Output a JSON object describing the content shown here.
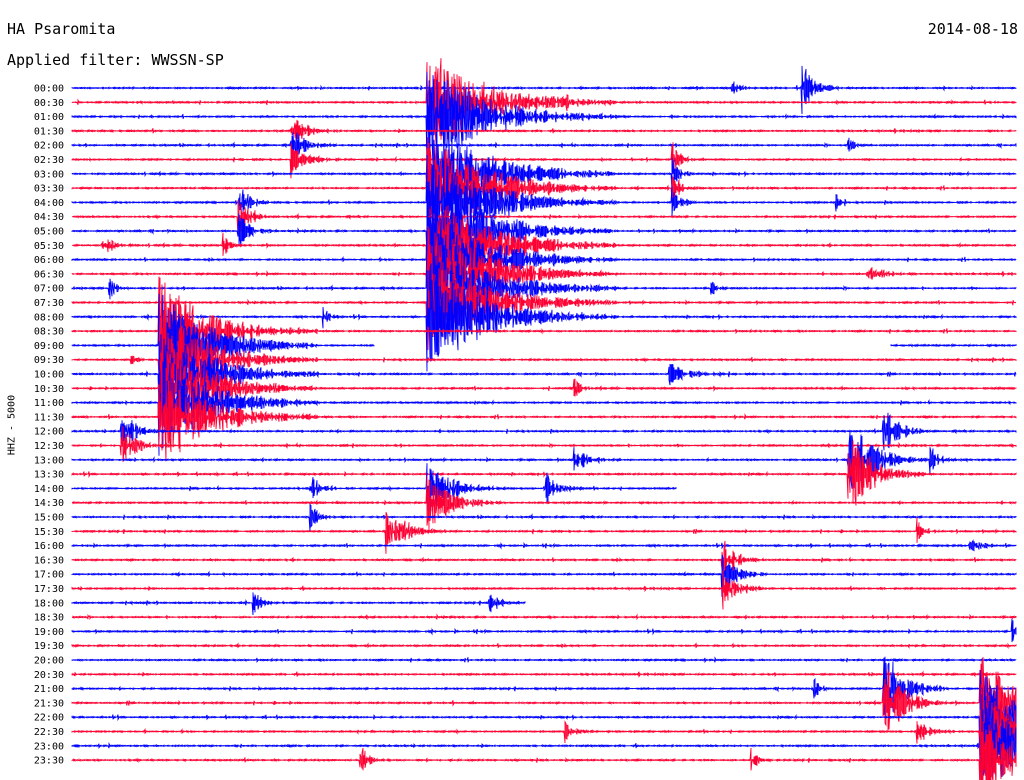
{
  "header": {
    "station": "HA Psaromita",
    "filter": "Applied filter: WWSSN-SP",
    "date": "2014-08-18"
  },
  "chart_data": {
    "type": "line",
    "title": "HA Psaromita",
    "subtitle": "Applied filter: WWSSN-SP",
    "date": "2014-08-18",
    "ylabel": "HHZ - 5000",
    "colors": {
      "even_trace": "#0000ff",
      "odd_trace": "#ff0033"
    },
    "row_labels": [
      "00:00",
      "00:30",
      "01:00",
      "01:30",
      "02:00",
      "02:30",
      "03:00",
      "03:30",
      "04:00",
      "04:30",
      "05:00",
      "05:30",
      "06:00",
      "06:30",
      "07:00",
      "07:30",
      "08:00",
      "08:30",
      "09:00",
      "09:30",
      "10:00",
      "10:30",
      "11:00",
      "11:30",
      "12:00",
      "12:30",
      "13:00",
      "13:30",
      "14:00",
      "14:30",
      "15:00",
      "15:30",
      "16:00",
      "16:30",
      "17:00",
      "17:30",
      "18:00",
      "18:30",
      "19:00",
      "19:30",
      "20:00",
      "20:30",
      "21:00",
      "21:30",
      "22:00",
      "22:30",
      "23:00",
      "23:30"
    ],
    "minutes_per_row": 30,
    "gaps": [
      {
        "row": 18,
        "from_min": 9.6,
        "to_min": 26.0
      },
      {
        "row": 28,
        "from_min": 19.2,
        "to_min": 30.0
      },
      {
        "row": 36,
        "from_min": 14.4,
        "to_min": 30.0
      }
    ],
    "events": [
      {
        "row": 0,
        "min": 23.2,
        "amp": 2.2,
        "dur": 1.2
      },
      {
        "row": 0,
        "min": 21.0,
        "amp": 0.7,
        "dur": 0.6
      },
      {
        "row": 1,
        "min": 11.3,
        "amp": 4.0,
        "dur": 6.0
      },
      {
        "row": 1,
        "min": 15.7,
        "amp": 0.8,
        "dur": 0.7
      },
      {
        "row": 2,
        "min": 11.3,
        "amp": 4.0,
        "dur": 6.0
      },
      {
        "row": 3,
        "min": 7.0,
        "amp": 1.2,
        "dur": 1.5
      },
      {
        "row": 4,
        "min": 7.0,
        "amp": 1.2,
        "dur": 1.5
      },
      {
        "row": 4,
        "min": 24.7,
        "amp": 0.8,
        "dur": 0.5
      },
      {
        "row": 5,
        "min": 7.0,
        "amp": 1.2,
        "dur": 1.5
      },
      {
        "row": 5,
        "min": 19.1,
        "amp": 1.2,
        "dur": 0.8
      },
      {
        "row": 6,
        "min": 11.3,
        "amp": 4.0,
        "dur": 6.0
      },
      {
        "row": 6,
        "min": 19.1,
        "amp": 1.2,
        "dur": 0.8
      },
      {
        "row": 7,
        "min": 11.3,
        "amp": 4.0,
        "dur": 6.0
      },
      {
        "row": 7,
        "min": 19.1,
        "amp": 1.2,
        "dur": 0.8
      },
      {
        "row": 8,
        "min": 11.3,
        "amp": 4.0,
        "dur": 6.0
      },
      {
        "row": 8,
        "min": 5.3,
        "amp": 1.3,
        "dur": 1.2
      },
      {
        "row": 8,
        "min": 19.1,
        "amp": 1.2,
        "dur": 0.8
      },
      {
        "row": 8,
        "min": 24.3,
        "amp": 0.7,
        "dur": 0.5
      },
      {
        "row": 9,
        "min": 5.3,
        "amp": 1.3,
        "dur": 1.2
      },
      {
        "row": 10,
        "min": 11.3,
        "amp": 4.0,
        "dur": 6.0
      },
      {
        "row": 10,
        "min": 5.3,
        "amp": 1.3,
        "dur": 1.2
      },
      {
        "row": 11,
        "min": 11.3,
        "amp": 4.0,
        "dur": 6.0
      },
      {
        "row": 11,
        "min": 1.0,
        "amp": 0.9,
        "dur": 1.0
      },
      {
        "row": 11,
        "min": 4.8,
        "amp": 1.0,
        "dur": 0.6
      },
      {
        "row": 12,
        "min": 11.3,
        "amp": 4.0,
        "dur": 6.0
      },
      {
        "row": 13,
        "min": 11.3,
        "amp": 4.0,
        "dur": 6.0
      },
      {
        "row": 13,
        "min": 13.3,
        "amp": 0.8,
        "dur": 0.8
      },
      {
        "row": 13,
        "min": 25.3,
        "amp": 0.8,
        "dur": 1.5
      },
      {
        "row": 14,
        "min": 11.3,
        "amp": 4.0,
        "dur": 6.0
      },
      {
        "row": 14,
        "min": 1.2,
        "amp": 1.0,
        "dur": 0.6
      },
      {
        "row": 14,
        "min": 20.3,
        "amp": 0.8,
        "dur": 0.5
      },
      {
        "row": 15,
        "min": 11.3,
        "amp": 4.0,
        "dur": 6.0
      },
      {
        "row": 16,
        "min": 11.3,
        "amp": 4.0,
        "dur": 6.0
      },
      {
        "row": 16,
        "min": 8.0,
        "amp": 0.8,
        "dur": 0.6
      },
      {
        "row": 17,
        "min": 2.8,
        "amp": 4.0,
        "dur": 5.0
      },
      {
        "row": 18,
        "min": 2.8,
        "amp": 4.0,
        "dur": 5.0
      },
      {
        "row": 19,
        "min": 2.8,
        "amp": 4.0,
        "dur": 5.0
      },
      {
        "row": 19,
        "min": 1.9,
        "amp": 0.8,
        "dur": 0.5
      },
      {
        "row": 20,
        "min": 2.8,
        "amp": 4.0,
        "dur": 5.0
      },
      {
        "row": 20,
        "min": 19.0,
        "amp": 0.8,
        "dur": 2.0
      },
      {
        "row": 21,
        "min": 2.8,
        "amp": 4.0,
        "dur": 5.0
      },
      {
        "row": 21,
        "min": 16.0,
        "amp": 0.8,
        "dur": 0.6
      },
      {
        "row": 22,
        "min": 2.8,
        "amp": 4.0,
        "dur": 5.0
      },
      {
        "row": 23,
        "min": 2.8,
        "amp": 4.0,
        "dur": 5.0
      },
      {
        "row": 24,
        "min": 1.6,
        "amp": 1.6,
        "dur": 1.5
      },
      {
        "row": 24,
        "min": 25.8,
        "amp": 2.0,
        "dur": 1.5
      },
      {
        "row": 25,
        "min": 1.6,
        "amp": 1.6,
        "dur": 1.5
      },
      {
        "row": 26,
        "min": 24.7,
        "amp": 3.0,
        "dur": 2.5
      },
      {
        "row": 26,
        "min": 27.3,
        "amp": 1.2,
        "dur": 1.0
      },
      {
        "row": 26,
        "min": 16.0,
        "amp": 0.9,
        "dur": 1.5
      },
      {
        "row": 27,
        "min": 24.7,
        "amp": 3.0,
        "dur": 2.5
      },
      {
        "row": 28,
        "min": 11.3,
        "amp": 2.0,
        "dur": 2.5
      },
      {
        "row": 28,
        "min": 7.6,
        "amp": 1.0,
        "dur": 1.0
      },
      {
        "row": 28,
        "min": 15.1,
        "amp": 1.2,
        "dur": 1.2
      },
      {
        "row": 29,
        "min": 11.3,
        "amp": 2.0,
        "dur": 2.5
      },
      {
        "row": 30,
        "min": 7.6,
        "amp": 1.0,
        "dur": 0.8
      },
      {
        "row": 31,
        "min": 10.0,
        "amp": 2.0,
        "dur": 2.0
      },
      {
        "row": 31,
        "min": 26.9,
        "amp": 0.8,
        "dur": 0.8
      },
      {
        "row": 32,
        "min": 28.5,
        "amp": 0.8,
        "dur": 1.0
      },
      {
        "row": 33,
        "min": 20.7,
        "amp": 1.6,
        "dur": 1.5
      },
      {
        "row": 34,
        "min": 20.7,
        "amp": 1.6,
        "dur": 1.5
      },
      {
        "row": 35,
        "min": 20.7,
        "amp": 1.6,
        "dur": 1.5
      },
      {
        "row": 36,
        "min": 5.8,
        "amp": 0.9,
        "dur": 1.0
      },
      {
        "row": 36,
        "min": 13.3,
        "amp": 0.8,
        "dur": 1.0
      },
      {
        "row": 38,
        "min": 29.9,
        "amp": 1.0,
        "dur": 0.6
      },
      {
        "row": 42,
        "min": 23.6,
        "amp": 0.8,
        "dur": 0.8
      },
      {
        "row": 42,
        "min": 25.8,
        "amp": 3.0,
        "dur": 2.0
      },
      {
        "row": 43,
        "min": 25.8,
        "amp": 3.0,
        "dur": 2.0
      },
      {
        "row": 43,
        "min": 28.9,
        "amp": 4.0,
        "dur": 3.5
      },
      {
        "row": 44,
        "min": 28.9,
        "amp": 4.0,
        "dur": 3.5
      },
      {
        "row": 45,
        "min": 28.9,
        "amp": 4.0,
        "dur": 3.5
      },
      {
        "row": 45,
        "min": 26.9,
        "amp": 1.0,
        "dur": 1.2
      },
      {
        "row": 45,
        "min": 15.7,
        "amp": 0.8,
        "dur": 1.0
      },
      {
        "row": 46,
        "min": 28.9,
        "amp": 4.0,
        "dur": 3.5
      },
      {
        "row": 47,
        "min": 28.9,
        "amp": 4.0,
        "dur": 3.5
      },
      {
        "row": 47,
        "min": 9.2,
        "amp": 1.0,
        "dur": 0.8
      },
      {
        "row": 47,
        "min": 21.6,
        "amp": 0.8,
        "dur": 0.8
      }
    ]
  }
}
